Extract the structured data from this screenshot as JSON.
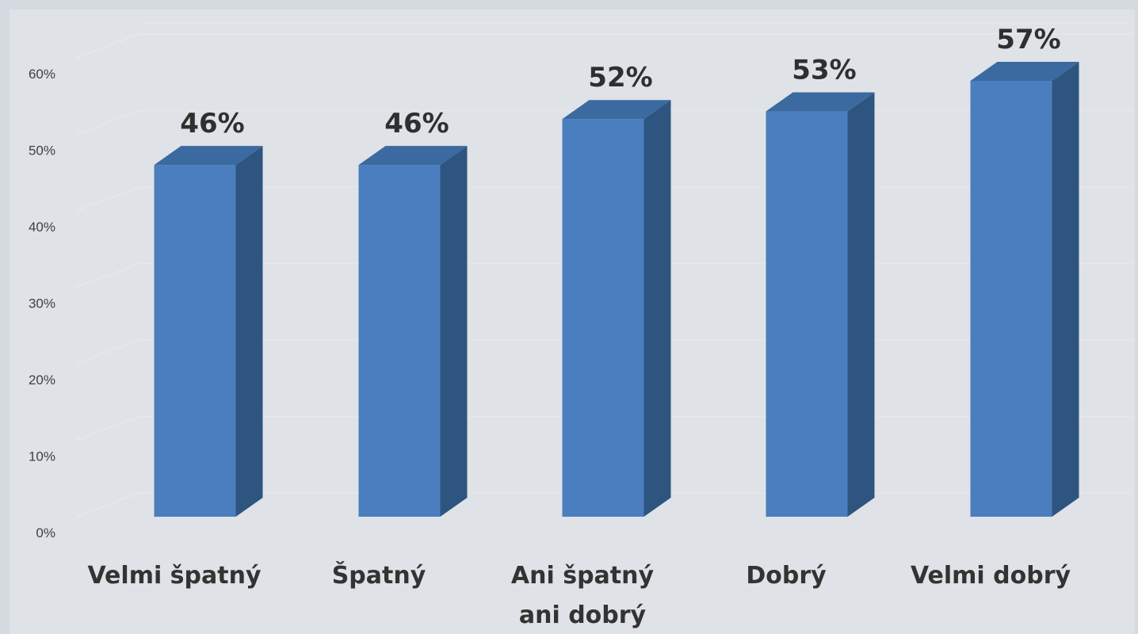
{
  "chart_data": {
    "type": "bar",
    "style": "3d-columns",
    "categories": [
      [
        "Velmi špatný"
      ],
      [
        "Špatný"
      ],
      [
        "Ani špatný",
        "ani dobrý"
      ],
      [
        "Dobrý"
      ],
      [
        "Velmi dobrý"
      ]
    ],
    "values": [
      46,
      46,
      52,
      53,
      57
    ],
    "data_labels": [
      "46%",
      "46%",
      "52%",
      "53%",
      "57%"
    ],
    "y_ticks": [
      "0%",
      "10%",
      "20%",
      "30%",
      "40%",
      "50%",
      "60%"
    ],
    "ylim": [
      0,
      60
    ],
    "grid": true,
    "legend": "none",
    "colors": {
      "bar_front": "#4a7ebf",
      "bar_side": "#2e5580",
      "bar_top": "#3b6aa0",
      "grid": "#e6e8ec",
      "background": "#d5d9e0",
      "plot_floor": "#dfe2e7"
    }
  }
}
